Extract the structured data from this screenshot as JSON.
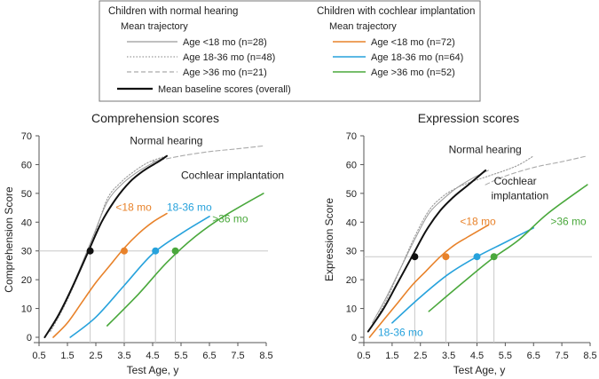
{
  "legend": {
    "normal_header": "Children with normal hearing",
    "normal_sub": "Mean trajectory",
    "normal_items": [
      "Age <18 mo (n=28)",
      "Age 18-36 mo (n=48)",
      "Age >36 mo (n=21)"
    ],
    "baseline_item": "Mean baseline scores (overall)",
    "ci_header": "Children with cochlear implantation",
    "ci_sub": "Mean trajectory",
    "ci_items": [
      "Age <18 mo (n=72)",
      "Age 18-36 mo (n=64)",
      "Age >36 mo (n=52)"
    ]
  },
  "colors": {
    "nh_lt18": "#9a9a9a",
    "nh_18_36": "#9a9a9a",
    "nh_gt36": "#aaaaaa",
    "baseline": "#111111",
    "ci_lt18": "#e8822a",
    "ci_18_36": "#27a2dc",
    "ci_gt36": "#4aa83c",
    "ref_line": "#c8c8c8",
    "frame": "#555555"
  },
  "chart_data": [
    {
      "type": "line",
      "title": "Comprehension scores",
      "xlabel": "Test Age, y",
      "ylabel": "Comprehension Score",
      "xlim": [
        0.5,
        8.5
      ],
      "ylim": [
        0,
        70
      ],
      "xticks": [
        "0.5",
        "1.5",
        "2.5",
        "3.5",
        "4.5",
        "5.5",
        "6.5",
        "7.5",
        "8.5"
      ],
      "xtick_values": [
        0.5,
        1.5,
        2.5,
        3.5,
        4.5,
        5.5,
        6.5,
        7.5,
        8.5
      ],
      "yticks": [
        "0",
        "10",
        "20",
        "30",
        "40",
        "50",
        "60",
        "70"
      ],
      "ytick_values": [
        0,
        10,
        20,
        30,
        40,
        50,
        60,
        70
      ],
      "reference_y": 30,
      "annotations": [
        {
          "text": "Normal hearing",
          "x": 3.7,
          "y": 67,
          "color": "#222222"
        },
        {
          "text": "Cochlear implantation",
          "x": 5.5,
          "y": 55,
          "color": "#222222"
        },
        {
          "text": "<18 mo",
          "x": 3.2,
          "y": 44,
          "color": "#e8822a"
        },
        {
          "text": "18-36 mo",
          "x": 5.0,
          "y": 44,
          "color": "#27a2dc"
        },
        {
          "text": ">36 mo",
          "x": 6.6,
          "y": 40,
          "color": "#4aa83c"
        }
      ],
      "series": [
        {
          "key": "nh_lt18",
          "style": "solid-thin",
          "x": [
            0.9,
            1.4,
            1.9,
            2.4,
            2.9,
            3.4,
            3.9,
            4.4,
            5.0
          ],
          "y": [
            3,
            12,
            23,
            35,
            47,
            53,
            57,
            60,
            63
          ]
        },
        {
          "key": "nh_18_36",
          "style": "dotted",
          "x": [
            0.9,
            1.4,
            1.9,
            2.4,
            2.9,
            3.4,
            3.9,
            4.4,
            5.0
          ],
          "y": [
            2,
            11,
            22,
            34,
            48,
            54,
            58,
            61,
            63
          ]
        },
        {
          "key": "nh_gt36",
          "style": "dashed",
          "x": [
            4.5,
            5.5,
            6.5,
            7.5,
            8.4
          ],
          "y": [
            61,
            63,
            64.5,
            65.5,
            66.5
          ]
        },
        {
          "key": "baseline",
          "style": "solid-thick",
          "x": [
            0.7,
            1.2,
            1.7,
            2.2,
            2.7,
            3.2,
            3.7,
            4.2,
            4.7,
            5.0
          ],
          "y": [
            0,
            8,
            18,
            29,
            40,
            48,
            54,
            58,
            61,
            63
          ]
        },
        {
          "key": "ci_lt18",
          "style": "solid",
          "x": [
            1.0,
            1.5,
            2.0,
            2.5,
            3.0,
            3.5,
            4.0,
            4.5,
            5.0
          ],
          "y": [
            0,
            5,
            12,
            19,
            25,
            31,
            36,
            40,
            43
          ]
        },
        {
          "key": "ci_18_36",
          "style": "solid",
          "x": [
            1.6,
            2.5,
            3.5,
            4.5,
            5.5,
            6.5
          ],
          "y": [
            0,
            7,
            18,
            29,
            36,
            42
          ]
        },
        {
          "key": "ci_gt36",
          "style": "solid",
          "x": [
            2.9,
            4.0,
            5.0,
            6.0,
            7.0,
            8.4
          ],
          "y": [
            4,
            15,
            26,
            35,
            42,
            50
          ]
        }
      ],
      "markers": [
        {
          "key": "baseline",
          "x": 2.3,
          "y": 30
        },
        {
          "key": "ci_lt18",
          "x": 3.5,
          "y": 30
        },
        {
          "key": "ci_18_36",
          "x": 4.6,
          "y": 30
        },
        {
          "key": "ci_gt36",
          "x": 5.3,
          "y": 30
        }
      ]
    },
    {
      "type": "line",
      "title": "Expression scores",
      "xlabel": "Test Age, y",
      "ylabel": "Expression Score",
      "xlim": [
        0.5,
        8.5
      ],
      "ylim": [
        0,
        70
      ],
      "xticks": [
        "0.5",
        "1.5",
        "2.5",
        "3.5",
        "4.5",
        "5.5",
        "6.5",
        "7.5",
        "8.5"
      ],
      "xtick_values": [
        0.5,
        1.5,
        2.5,
        3.5,
        4.5,
        5.5,
        6.5,
        7.5,
        8.5
      ],
      "yticks": [
        "0",
        "10",
        "20",
        "30",
        "40",
        "50",
        "60",
        "70"
      ],
      "ytick_values": [
        0,
        10,
        20,
        30,
        40,
        50,
        60,
        70
      ],
      "reference_y": 28,
      "annotations": [
        {
          "text": "Normal hearing",
          "x": 3.5,
          "y": 64,
          "color": "#222222"
        },
        {
          "text": "Cochlear",
          "x": 5.1,
          "y": 53,
          "color": "#222222"
        },
        {
          "text": "implantation",
          "x": 5.0,
          "y": 48,
          "color": "#222222"
        },
        {
          "text": "<18 mo",
          "x": 3.9,
          "y": 39,
          "color": "#e8822a"
        },
        {
          "text": "18-36 mo",
          "x": 1.0,
          "y": 0.5,
          "color": "#27a2dc"
        },
        {
          "text": ">36 mo",
          "x": 7.1,
          "y": 39,
          "color": "#4aa83c"
        }
      ],
      "series": [
        {
          "key": "nh_lt18",
          "style": "solid-thin",
          "x": [
            0.8,
            1.3,
            1.8,
            2.3,
            2.8,
            3.3,
            3.8,
            4.3,
            4.9
          ],
          "y": [
            5,
            14,
            24,
            34,
            43,
            48,
            52,
            55,
            58
          ]
        },
        {
          "key": "nh_18_36",
          "style": "dotted",
          "x": [
            0.8,
            1.3,
            1.8,
            2.3,
            2.8,
            3.3,
            3.8,
            4.3,
            4.9,
            5.5,
            6.0,
            6.5
          ],
          "y": [
            4,
            13,
            24,
            35,
            44,
            49,
            52,
            54,
            56,
            58,
            60,
            63
          ]
        },
        {
          "key": "nh_gt36",
          "style": "dashed",
          "x": [
            4.8,
            5.5,
            6.5,
            7.5,
            8.4
          ],
          "y": [
            53,
            56,
            59,
            61,
            63
          ]
        },
        {
          "key": "baseline",
          "style": "solid-thick",
          "x": [
            0.65,
            1.2,
            1.7,
            2.2,
            2.7,
            3.2,
            3.7,
            4.2,
            4.8
          ],
          "y": [
            2,
            10,
            19,
            28,
            37,
            44,
            49,
            53,
            58
          ]
        },
        {
          "key": "ci_lt18",
          "style": "solid",
          "x": [
            0.7,
            1.2,
            1.7,
            2.2,
            2.7,
            3.2,
            3.7,
            4.2,
            4.9
          ],
          "y": [
            0,
            6,
            12,
            18,
            23,
            28,
            32,
            35,
            39
          ]
        },
        {
          "key": "ci_18_36",
          "style": "solid",
          "x": [
            1.5,
            2.5,
            3.5,
            4.5,
            5.5,
            6.5
          ],
          "y": [
            5,
            14,
            22,
            28,
            33,
            38
          ]
        },
        {
          "key": "ci_gt36",
          "style": "solid",
          "x": [
            2.8,
            4.0,
            5.0,
            6.0,
            7.0,
            8.4
          ],
          "y": [
            9,
            19,
            27,
            34,
            43,
            53
          ]
        }
      ],
      "markers": [
        {
          "key": "baseline",
          "x": 2.3,
          "y": 28
        },
        {
          "key": "ci_lt18",
          "x": 3.4,
          "y": 28
        },
        {
          "key": "ci_18_36",
          "x": 4.5,
          "y": 28
        },
        {
          "key": "ci_gt36",
          "x": 5.1,
          "y": 28
        }
      ]
    }
  ]
}
